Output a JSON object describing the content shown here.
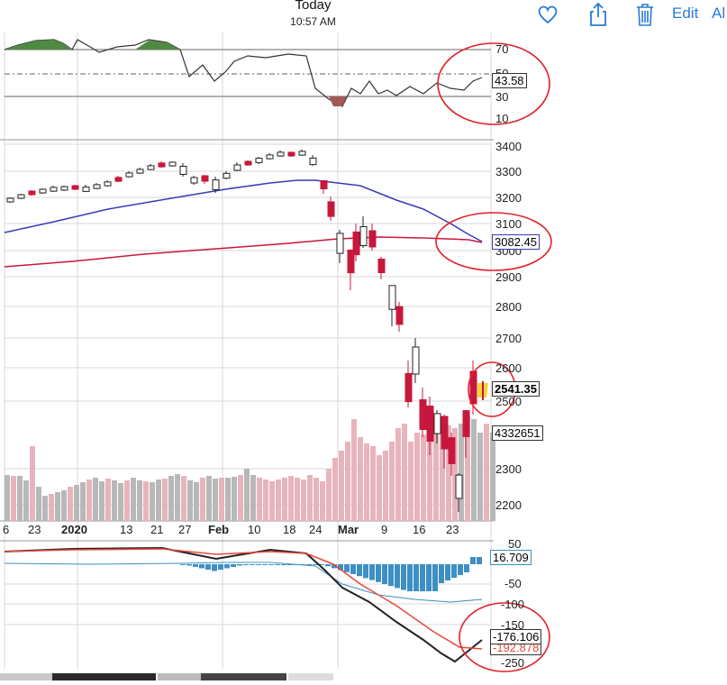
{
  "header": {
    "title": "Today",
    "time": "10:57 AM",
    "edit_label": "Edit",
    "all_label": "Al"
  },
  "icons": [
    "heart-icon",
    "share-icon",
    "trash-icon"
  ],
  "indicator_top": {
    "levels": [
      "70",
      "50",
      "30",
      "10"
    ],
    "current": "43.58"
  },
  "price_panel": {
    "levels": [
      "3400",
      "3300",
      "3200",
      "3100",
      "3000",
      "2900",
      "2800",
      "2700",
      "2600",
      "2500",
      "2300",
      "2200"
    ],
    "ma_value": "3082.45",
    "last_price": "2541.35",
    "volume_value": "4332651"
  },
  "time_axis": [
    "6",
    "23",
    "2020",
    "13",
    "21",
    "27",
    "Feb",
    "10",
    "18",
    "24",
    "Mar",
    "9",
    "16",
    "23"
  ],
  "macd_panel": {
    "levels": [
      "50",
      "-50",
      "-100",
      "-150",
      "-250"
    ],
    "top_value": "16.709",
    "macd_value": "-176.106",
    "signal_value": "-192.878"
  },
  "colors": {
    "accent": "#2a7ad6",
    "bull": "#ffffff",
    "bear": "#c8173c",
    "ma_blue": "#3a3ab8",
    "ma_red": "#c8173c",
    "annotation": "#e0202a",
    "hist": "#3d8fc4"
  }
}
